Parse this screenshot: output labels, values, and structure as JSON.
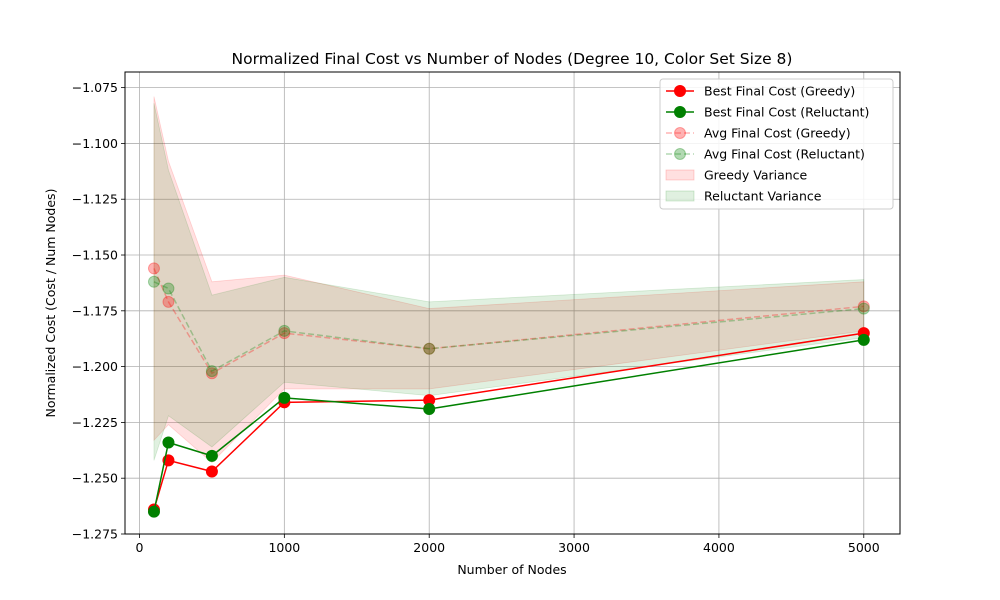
{
  "chart_data": {
    "type": "line",
    "title": "Normalized Final Cost vs Number of Nodes (Degree 10, Color Set Size 8)",
    "xlabel": "Number of Nodes",
    "ylabel": "Normalized Cost (Cost / Num Nodes)",
    "xlim": [
      -100,
      5250
    ],
    "ylim": [
      -1.275,
      -1.068
    ],
    "xticks": [
      0,
      1000,
      2000,
      3000,
      4000,
      5000
    ],
    "xtick_labels": [
      "0",
      "1000",
      "2000",
      "3000",
      "4000",
      "5000"
    ],
    "yticks": [
      -1.275,
      -1.25,
      -1.225,
      -1.2,
      -1.175,
      -1.15,
      -1.125,
      -1.1,
      -1.075
    ],
    "ytick_labels": [
      "−1.275",
      "−1.250",
      "−1.225",
      "−1.200",
      "−1.175",
      "−1.150",
      "−1.125",
      "−1.100",
      "−1.075"
    ],
    "grid": true,
    "legend_position": "top-right",
    "x": [
      100,
      200,
      500,
      1000,
      2000,
      5000
    ],
    "series": [
      {
        "name": "Best Final Cost (Greedy)",
        "kind": "line",
        "color": "#ff0000",
        "alpha": 1.0,
        "dashed": false,
        "values": [
          -1.264,
          -1.242,
          -1.247,
          -1.216,
          -1.215,
          -1.185
        ]
      },
      {
        "name": "Best Final Cost (Reluctant)",
        "kind": "line",
        "color": "#008000",
        "alpha": 1.0,
        "dashed": false,
        "values": [
          -1.265,
          -1.234,
          -1.24,
          -1.214,
          -1.219,
          -1.188
        ]
      },
      {
        "name": "Avg Final Cost (Greedy)",
        "kind": "line",
        "color": "#ff0000",
        "alpha": 0.3,
        "dashed": true,
        "values": [
          -1.156,
          -1.171,
          -1.203,
          -1.185,
          -1.192,
          -1.173
        ]
      },
      {
        "name": "Avg Final Cost (Reluctant)",
        "kind": "line",
        "color": "#008000",
        "alpha": 0.3,
        "dashed": true,
        "values": [
          -1.162,
          -1.165,
          -1.202,
          -1.184,
          -1.192,
          -1.174
        ]
      }
    ],
    "bands": [
      {
        "name": "Greedy Variance",
        "color": "#ff0000",
        "alpha": 0.12,
        "upper": [
          -1.079,
          -1.108,
          -1.162,
          -1.159,
          -1.174,
          -1.162
        ],
        "lower": [
          -1.233,
          -1.226,
          -1.243,
          -1.21,
          -1.21,
          -1.184
        ]
      },
      {
        "name": "Reluctant Variance",
        "color": "#008000",
        "alpha": 0.12,
        "upper": [
          -1.082,
          -1.112,
          -1.168,
          -1.16,
          -1.171,
          -1.161
        ],
        "lower": [
          -1.242,
          -1.222,
          -1.236,
          -1.207,
          -1.213,
          -1.187
        ]
      }
    ]
  }
}
